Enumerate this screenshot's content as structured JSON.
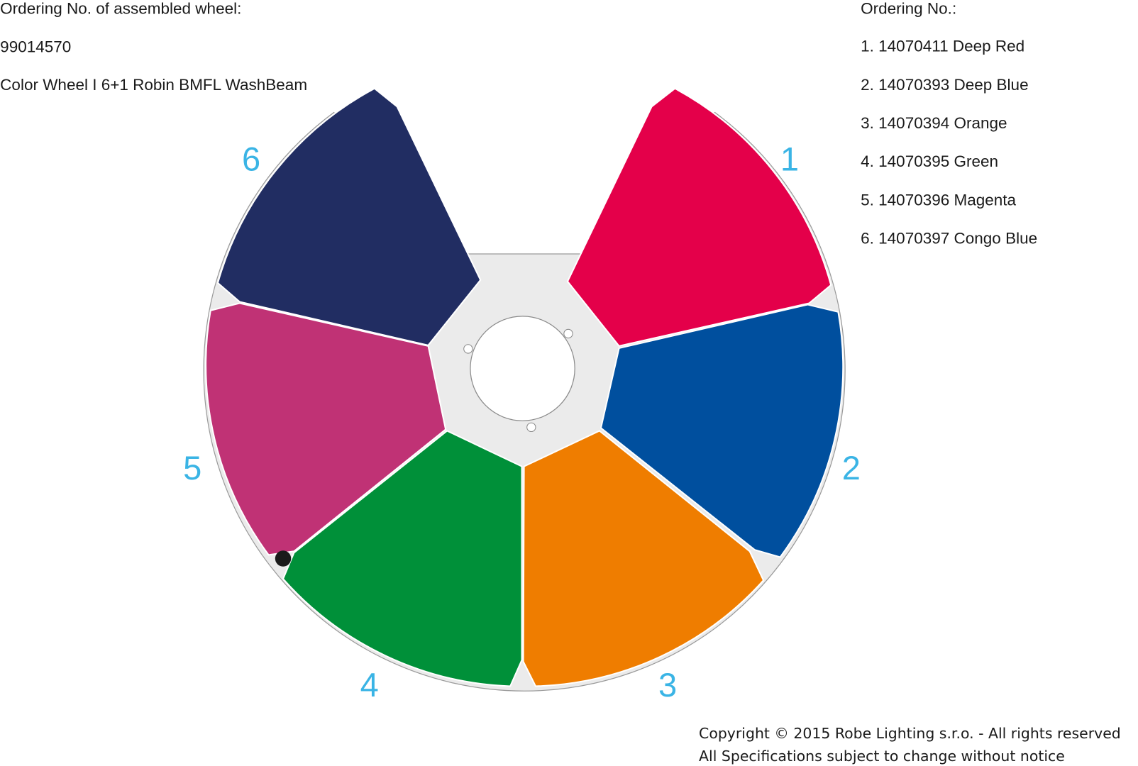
{
  "header": {
    "label": "Ordering No. of assembled wheel:",
    "number": "99014570",
    "name": "Color Wheel I 6+1 Robin BMFL WashBeam"
  },
  "ordering": {
    "title": "Ordering No.:",
    "items": [
      {
        "label": "1. 14070411 Deep Red",
        "color": "#e4004a"
      },
      {
        "label": "2. 14070393 Deep Blue",
        "color": "#004f9e"
      },
      {
        "label": "3. 14070394 Orange",
        "color": "#ef7d00"
      },
      {
        "label": "4. 14070395 Green",
        "color": "#009039"
      },
      {
        "label": "5. 14070396 Magenta",
        "color": "#c03275"
      },
      {
        "label": "6. 14070397 Congo Blue",
        "color": "#212d62"
      }
    ]
  },
  "wheel": {
    "position_numbers": [
      "1",
      "2",
      "3",
      "4",
      "5",
      "6"
    ],
    "number_color": "#3ab4e5",
    "disc_color": "#ebebeb"
  },
  "footer": {
    "copyright": "Copyright © 2015 Robe Lighting s.r.o. - All rights reserved",
    "notice": "All Specifications subject to change without notice"
  }
}
